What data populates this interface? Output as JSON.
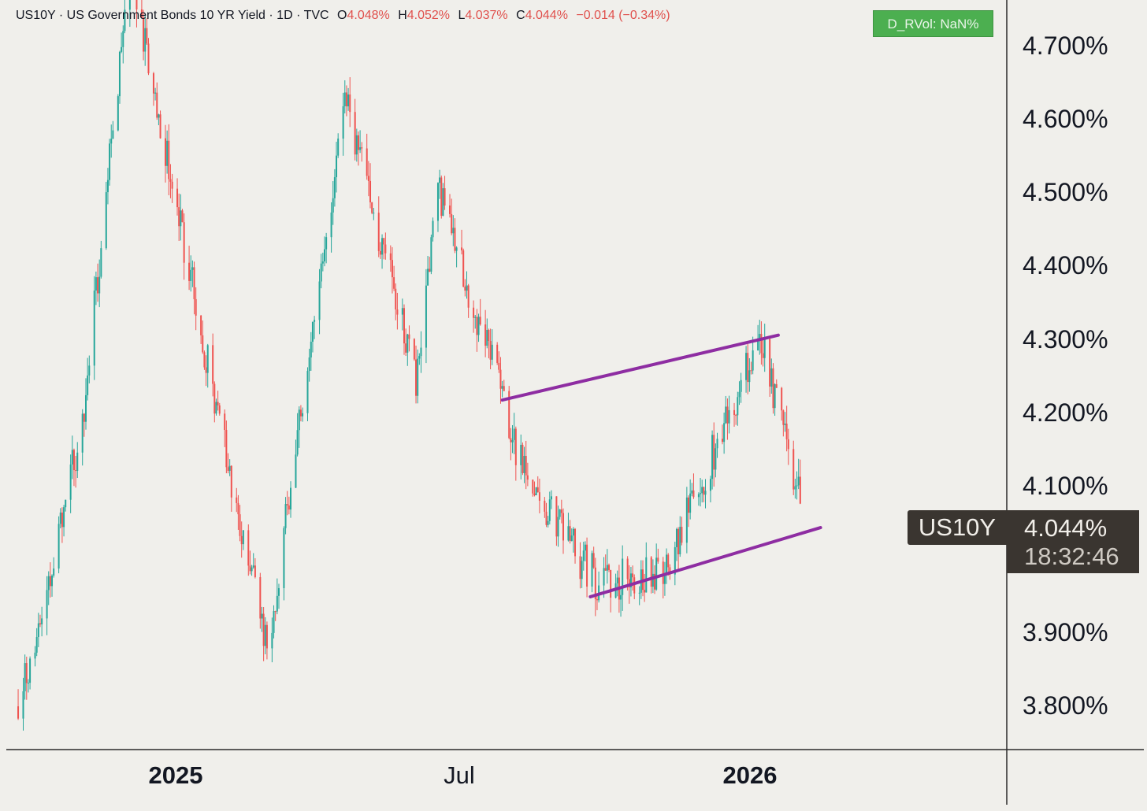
{
  "header": {
    "symbol": "US10Y",
    "description": "US Government Bonds 10 YR Yield",
    "interval": "1D",
    "source": "TVC",
    "open_label": "O",
    "open": "4.048%",
    "high_label": "H",
    "high": "4.052%",
    "low_label": "L",
    "low": "4.037%",
    "close_label": "C",
    "close": "4.044%",
    "change": "−0.014 (−0.34%)"
  },
  "indicator_badge": "D_RVol: NaN%",
  "price_scale": {
    "ticks": [
      "4.700%",
      "4.600%",
      "4.500%",
      "4.400%",
      "4.300%",
      "4.200%",
      "4.100%",
      "3.900%",
      "3.800%"
    ]
  },
  "time_scale": {
    "ticks": [
      "2025",
      "Jul",
      "2026"
    ]
  },
  "last_price": {
    "symbol": "US10Y",
    "value": "4.044%",
    "countdown": "18:32:46"
  },
  "colors": {
    "background": "#f0efeb",
    "up": "#26a69a",
    "down": "#ef5350",
    "trendline": "#8e2da2",
    "badge": "#4caf50",
    "price_label_bg": "#3a3530"
  },
  "chart_data": {
    "type": "candlestick",
    "interval": "1D",
    "y_unit": "%",
    "ylim": [
      3.72,
      4.76
    ],
    "xlim": [
      "2024-11-01",
      "2026-06-15"
    ],
    "grid": false,
    "key_points": [
      {
        "date": "2024-11-08",
        "value": 3.78
      },
      {
        "date": "2024-12-15",
        "value": 4.16
      },
      {
        "date": "2025-01-13",
        "value": 4.8
      },
      {
        "date": "2025-02-26",
        "value": 4.28
      },
      {
        "date": "2025-04-04",
        "value": 3.86
      },
      {
        "date": "2025-05-21",
        "value": 4.62
      },
      {
        "date": "2025-07-01",
        "value": 4.23
      },
      {
        "date": "2025-07-14",
        "value": 4.5
      },
      {
        "date": "2025-09-05",
        "value": 4.09
      },
      {
        "date": "2025-10-17",
        "value": 3.95
      },
      {
        "date": "2025-11-25",
        "value": 3.97
      },
      {
        "date": "2026-01-20",
        "value": 4.29
      },
      {
        "date": "2026-02-15",
        "value": 4.044
      }
    ],
    "trendlines": [
      {
        "start": {
          "date": "2025-08-21",
          "value": 4.205
        },
        "end": {
          "date": "2026-01-31",
          "value": 4.295
        }
      },
      {
        "start": {
          "date": "2025-10-12",
          "value": 3.932
        },
        "end": {
          "date": "2026-02-25",
          "value": 4.028
        }
      }
    ],
    "last_value": 4.044
  }
}
